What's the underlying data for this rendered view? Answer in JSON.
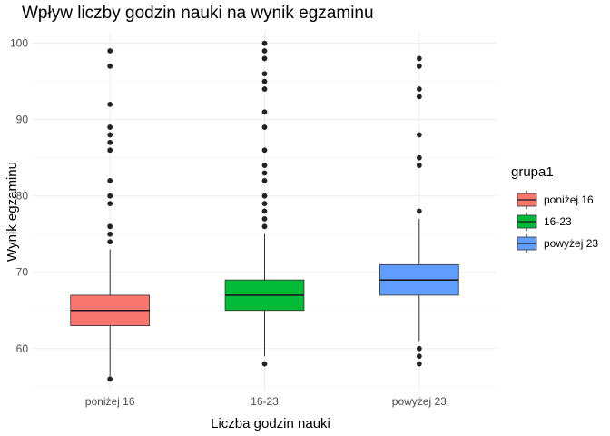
{
  "chart_data": {
    "type": "boxplot",
    "title": "Wpływ liczby godzin nauki na wynik egzaminu",
    "xlabel": "Liczba godzin nauki",
    "ylabel": "Wynik egzaminu",
    "categories": [
      "poniżej 16",
      "16-23",
      "powyżej 23"
    ],
    "ylim": [
      54.5,
      101.5
    ],
    "yticks": [
      60,
      70,
      80,
      90,
      100
    ],
    "grid": true,
    "legend": {
      "title": "grupa1",
      "position": "right",
      "entries": [
        "poniżej 16",
        "16-23",
        "powyżej 23"
      ]
    },
    "series": [
      {
        "name": "poniżej 16",
        "color": "#F8766D",
        "whisker_low": 56,
        "q1": 63,
        "median": 65,
        "q3": 67,
        "whisker_high": 73,
        "outliers": [
          56,
          74,
          75,
          76,
          79,
          80,
          82,
          86,
          87,
          88,
          89,
          92,
          97,
          99
        ]
      },
      {
        "name": "16-23",
        "color": "#00BA38",
        "whisker_low": 59,
        "q1": 65,
        "median": 67,
        "q3": 69,
        "whisker_high": 75,
        "outliers": [
          58,
          76,
          77,
          78,
          79,
          80,
          82,
          83,
          84,
          86,
          89,
          91,
          94,
          95,
          96,
          98,
          99,
          100
        ]
      },
      {
        "name": "powyżej 23",
        "color": "#619CFF",
        "whisker_low": 61,
        "q1": 67,
        "median": 69,
        "q3": 71,
        "whisker_high": 77,
        "outliers": [
          58,
          59,
          60,
          78,
          84,
          85,
          88,
          93,
          94,
          97,
          98
        ]
      }
    ]
  }
}
